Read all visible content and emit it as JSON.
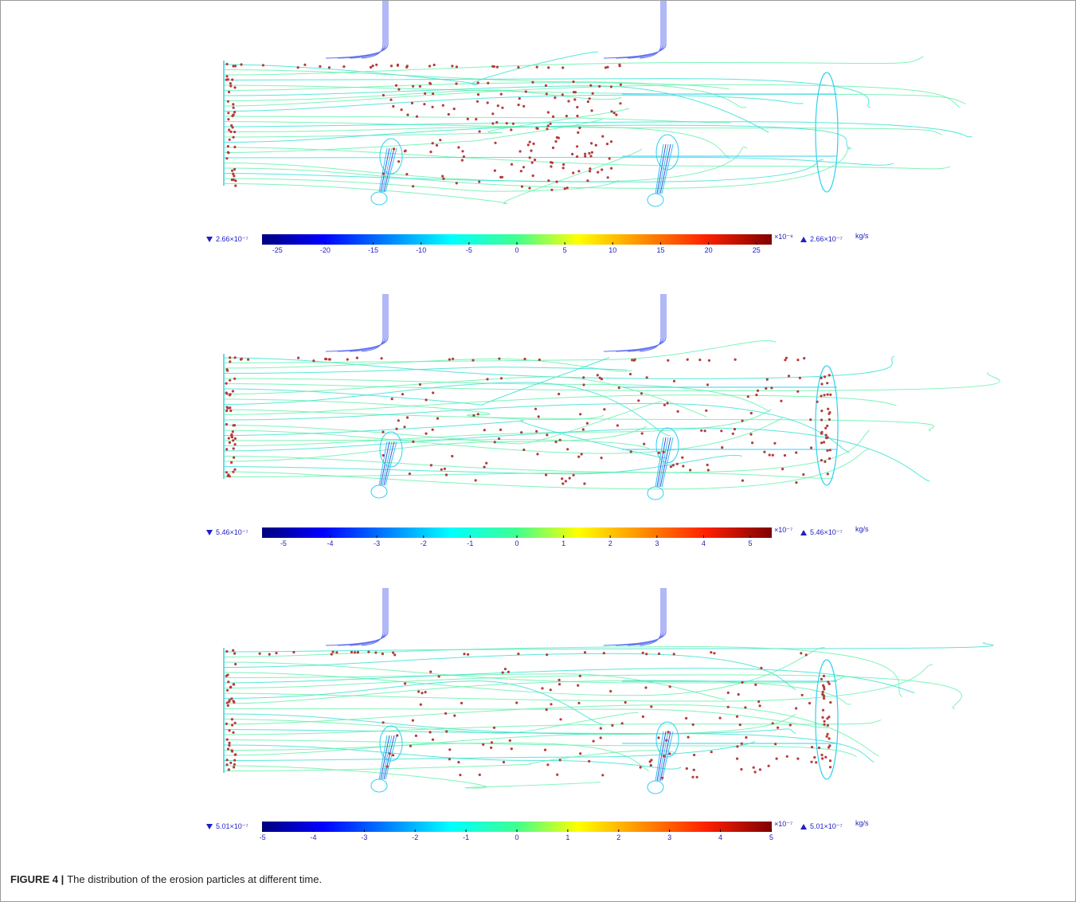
{
  "panels": [
    {
      "min_label": "2.66×10⁻⁷",
      "lim": [
        -26.6,
        26.6
      ],
      "ticks": [
        -25,
        -20,
        -15,
        -10,
        -5,
        0,
        5,
        10,
        15,
        20,
        25
      ],
      "multiplier": "×10⁻⁸",
      "max_label": "2.66×10⁻⁷",
      "unit": "kg/s"
    },
    {
      "min_label": "5.46×10⁻⁷",
      "lim": [
        -5.46,
        5.46
      ],
      "ticks": [
        -5,
        -4,
        -3,
        -2,
        -1,
        0,
        1,
        2,
        3,
        4,
        5
      ],
      "multiplier": "×10⁻⁷",
      "max_label": "5.46×10⁻⁷",
      "unit": "kg/s"
    },
    {
      "min_label": "5.01×10⁻⁷",
      "lim": [
        -5.01,
        5.01
      ],
      "ticks": [
        -5,
        -4,
        -3,
        -2,
        -1,
        0,
        1,
        2,
        3,
        4,
        5
      ],
      "multiplier": "×10⁻⁷",
      "max_label": "5.01×10⁻⁷",
      "unit": "kg/s"
    }
  ],
  "caption": {
    "label": "FIGURE 4 |",
    "text": "The distribution of the erosion particles at different time."
  }
}
